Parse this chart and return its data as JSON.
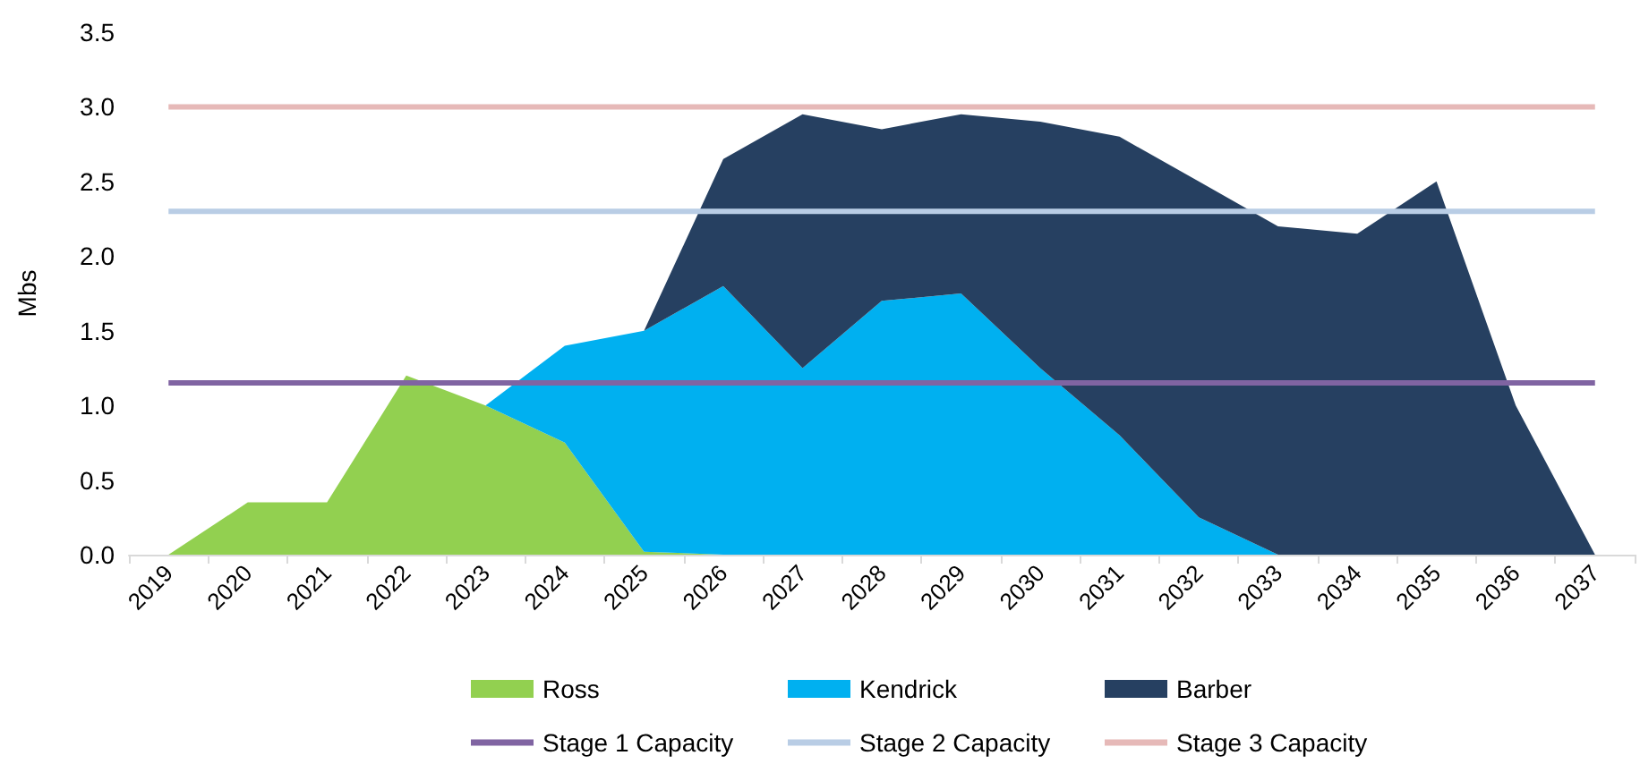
{
  "chart_data": {
    "type": "area",
    "stacked": true,
    "ylabel": "Mbs",
    "categories": [
      "2019",
      "2020",
      "2021",
      "2022",
      "2023",
      "2024",
      "2025",
      "2026",
      "2027",
      "2028",
      "2029",
      "2030",
      "2031",
      "2032",
      "2033",
      "2034",
      "2035",
      "2036",
      "2037"
    ],
    "series": [
      {
        "name": "Ross",
        "color": "#92d050",
        "values": [
          0,
          0.35,
          0.35,
          1.2,
          1.0,
          0.75,
          0.02,
          0,
          0,
          0,
          0,
          0,
          0,
          0,
          0,
          0,
          0,
          0,
          0
        ]
      },
      {
        "name": "Kendrick",
        "color": "#00b0f0",
        "values": [
          0,
          0,
          0,
          0,
          0,
          0.65,
          1.48,
          1.8,
          1.25,
          1.7,
          1.75,
          1.25,
          0.8,
          0.25,
          0,
          0,
          0,
          0,
          0
        ]
      },
      {
        "name": "Barber",
        "color": "#264061",
        "values": [
          0,
          0,
          0,
          0,
          0,
          0,
          0,
          0.85,
          1.7,
          1.15,
          1.2,
          1.65,
          2.0,
          2.25,
          2.2,
          2.15,
          2.5,
          1.0,
          0
        ]
      },
      {
        "name": "Stage 1 Capacity",
        "type": "line",
        "color": "#8064a2",
        "values": [
          1.15,
          1.15,
          1.15,
          1.15,
          1.15,
          1.15,
          1.15,
          1.15,
          1.15,
          1.15,
          1.15,
          1.15,
          1.15,
          1.15,
          1.15,
          1.15,
          1.15,
          1.15,
          1.15
        ]
      },
      {
        "name": "Stage 2 Capacity",
        "type": "line",
        "color": "#b9cde5",
        "values": [
          2.3,
          2.3,
          2.3,
          2.3,
          2.3,
          2.3,
          2.3,
          2.3,
          2.3,
          2.3,
          2.3,
          2.3,
          2.3,
          2.3,
          2.3,
          2.3,
          2.3,
          2.3,
          2.3
        ]
      },
      {
        "name": "Stage 3 Capacity",
        "type": "line",
        "color": "#e6b9b8",
        "values": [
          3.0,
          3.0,
          3.0,
          3.0,
          3.0,
          3.0,
          3.0,
          3.0,
          3.0,
          3.0,
          3.0,
          3.0,
          3.0,
          3.0,
          3.0,
          3.0,
          3.0,
          3.0,
          3.0
        ]
      }
    ],
    "ylim": [
      0,
      3.5
    ],
    "yticks": [
      {
        "value": 0,
        "label": "0.0"
      },
      0.5,
      {
        "value": 1,
        "label": "1.0"
      },
      1.5,
      {
        "value": 2,
        "label": "2.0"
      },
      2.5,
      {
        "value": 3,
        "label": "3.0"
      },
      3.5
    ],
    "grid": false,
    "legend": "bottom"
  }
}
